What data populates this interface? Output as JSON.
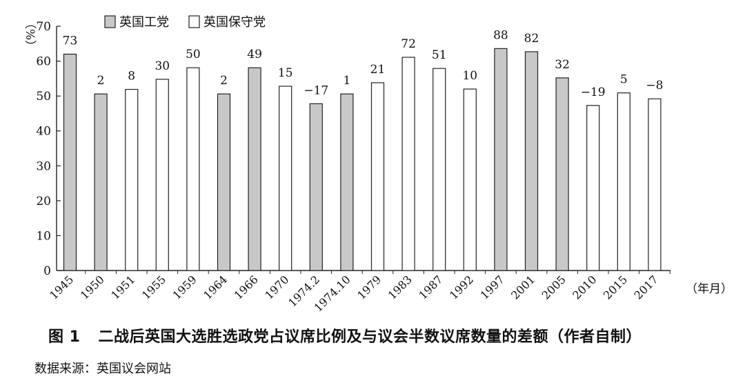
{
  "chart_data": {
    "type": "bar",
    "ylabel": "%",
    "xunit": "（年月）",
    "ylim": [
      0,
      70
    ],
    "yticks": [
      0,
      10,
      20,
      30,
      40,
      50,
      60,
      70
    ],
    "grid": false,
    "legend_position": "top-left",
    "series": [
      {
        "name": "英国工党",
        "color": "#c8c8c8"
      },
      {
        "name": "英国保守党",
        "color": "#ffffff"
      }
    ],
    "categories": [
      "1945",
      "1950",
      "1951",
      "1955",
      "1959",
      "1964",
      "1966",
      "1970",
      "1974.2",
      "1974.10",
      "1979",
      "1983",
      "1987",
      "1992",
      "1997",
      "2001",
      "2005",
      "2010",
      "2015",
      "2017"
    ],
    "winner": [
      "英国工党",
      "英国工党",
      "英国保守党",
      "英国保守党",
      "英国保守党",
      "英国工党",
      "英国工党",
      "英国保守党",
      "英国工党",
      "英国工党",
      "英国保守党",
      "英国保守党",
      "英国保守党",
      "英国保守党",
      "英国工党",
      "英国工党",
      "英国工党",
      "英国保守党",
      "英国保守党",
      "英国保守党"
    ],
    "values": [
      62,
      50.6,
      51.9,
      54.8,
      58.1,
      50.6,
      58.1,
      52.8,
      47.8,
      50.6,
      53.8,
      61.1,
      57.9,
      52,
      63.6,
      62.7,
      55.2,
      47.3,
      50.9,
      49.2
    ],
    "labels": [
      "73",
      "2",
      "8",
      "30",
      "50",
      "2",
      "49",
      "15",
      "−17",
      "1",
      "21",
      "72",
      "51",
      "10",
      "88",
      "82",
      "32",
      "−19",
      "5",
      "−8"
    ]
  },
  "caption": {
    "figure_no": "图 1",
    "text": "二战后英国大选胜选政党占议席比例及与议会半数议席数量的差额（作者自制）"
  },
  "source": "数据来源：英国议会网站"
}
